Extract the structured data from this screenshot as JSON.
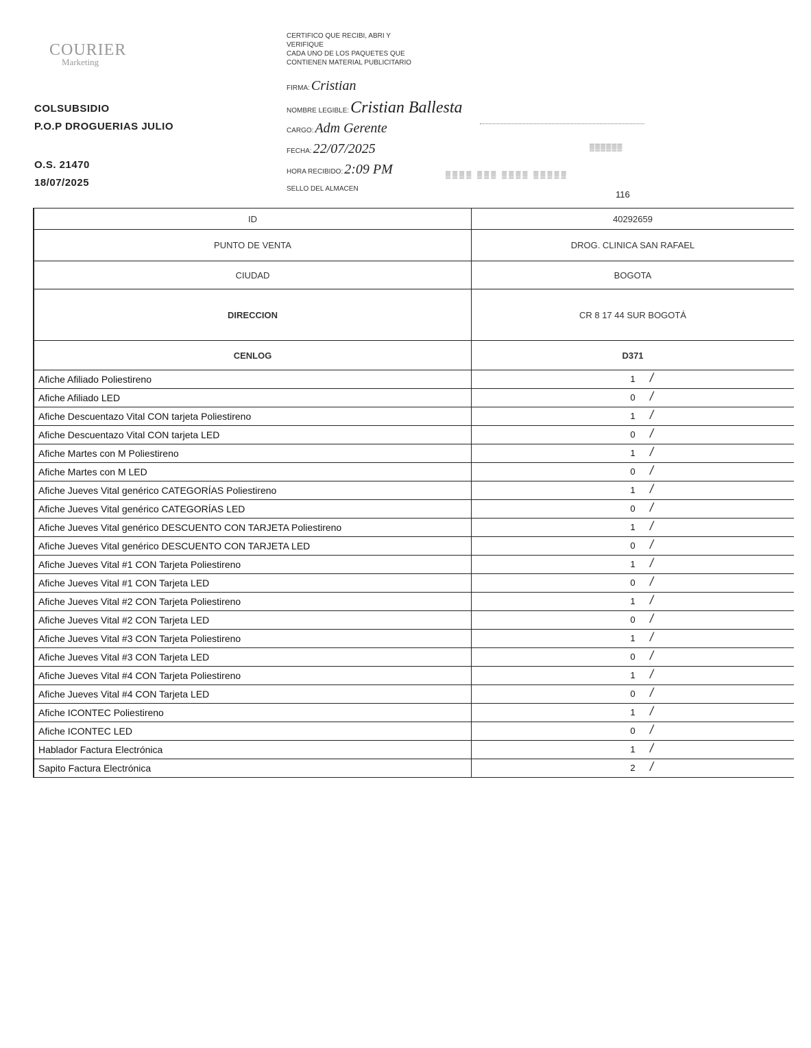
{
  "logo": {
    "line1": "COURIER",
    "line2": "Marketing"
  },
  "client": {
    "name": "COLSUBSIDIO",
    "campaign": "P.O.P DROGUERIAS JULIO",
    "order": "O.S. 21470",
    "date": "18/07/2025"
  },
  "certification": {
    "text_lines": [
      "CERTIFICO QUE RECIBI, ABRI Y",
      "VERIFIQUE",
      "CADA UNO DE LOS PAQUETES QUE",
      "CONTIENEN MATERIAL PUBLICITARIO"
    ],
    "firma_label": "FIRMA:",
    "firma_value": "Cristian",
    "nombre_label": "NOMBRE LEGIBLE:",
    "nombre_value": "Cristian Ballesta",
    "cargo_label": "CARGO:",
    "cargo_value": "Adm Gerente",
    "fecha_label": "FECHA:",
    "fecha_value": "22/07/2025",
    "hora_label": "HORA RECIBIDO:",
    "hora_value": "2:09 PM",
    "sello_label": "SELLO DEL ALMACEN",
    "page_number": "116"
  },
  "table": {
    "header_rows": [
      {
        "label": "ID",
        "value": "40292659"
      },
      {
        "label": "PUNTO DE VENTA",
        "value": "DROG. CLINICA SAN RAFAEL"
      },
      {
        "label": "CIUDAD",
        "value": "BOGOTA"
      },
      {
        "label": "DIRECCION",
        "value": "CR 8 17 44 SUR BOGOTÁ"
      },
      {
        "label": "CENLOG",
        "value": "D371"
      }
    ],
    "items": [
      {
        "name": "Afiche Afiliado Poliestireno",
        "qty": "1"
      },
      {
        "name": "Afiche Afiliado LED",
        "qty": "0"
      },
      {
        "name": "Afiche Descuentazo Vital CON tarjeta Poliestireno",
        "qty": "1"
      },
      {
        "name": "Afiche Descuentazo Vital CON tarjeta LED",
        "qty": "0"
      },
      {
        "name": "Afiche Martes con M Poliestireno",
        "qty": "1"
      },
      {
        "name": "Afiche Martes con M LED",
        "qty": "0"
      },
      {
        "name": "Afiche Jueves Vital genérico CATEGORÍAS Poliestireno",
        "qty": "1"
      },
      {
        "name": "Afiche Jueves Vital genérico CATEGORÍAS LED",
        "qty": "0"
      },
      {
        "name": "Afiche Jueves Vital genérico DESCUENTO CON TARJETA Poliestireno",
        "qty": "1"
      },
      {
        "name": "Afiche Jueves Vital genérico DESCUENTO CON TARJETA LED",
        "qty": "0"
      },
      {
        "name": "Afiche Jueves Vital #1 CON Tarjeta Poliestireno",
        "qty": "1"
      },
      {
        "name": "Afiche Jueves Vital #1 CON Tarjeta LED",
        "qty": "0"
      },
      {
        "name": "Afiche Jueves Vital #2 CON Tarjeta Poliestireno",
        "qty": "1"
      },
      {
        "name": "Afiche Jueves Vital #2 CON Tarjeta LED",
        "qty": "0"
      },
      {
        "name": "Afiche Jueves Vital #3 CON Tarjeta Poliestireno",
        "qty": "1"
      },
      {
        "name": "Afiche Jueves Vital #3 CON Tarjeta LED",
        "qty": "0"
      },
      {
        "name": "Afiche Jueves Vital #4 CON Tarjeta Poliestireno",
        "qty": "1"
      },
      {
        "name": "Afiche Jueves Vital #4 CON Tarjeta LED",
        "qty": "0"
      },
      {
        "name": "Afiche ICONTEC Poliestireno",
        "qty": "1"
      },
      {
        "name": "Afiche ICONTEC LED",
        "qty": "0"
      },
      {
        "name": "Hablador Factura Electrónica",
        "qty": "1"
      },
      {
        "name": "Sapito Factura Electrónica",
        "qty": "2"
      }
    ]
  }
}
